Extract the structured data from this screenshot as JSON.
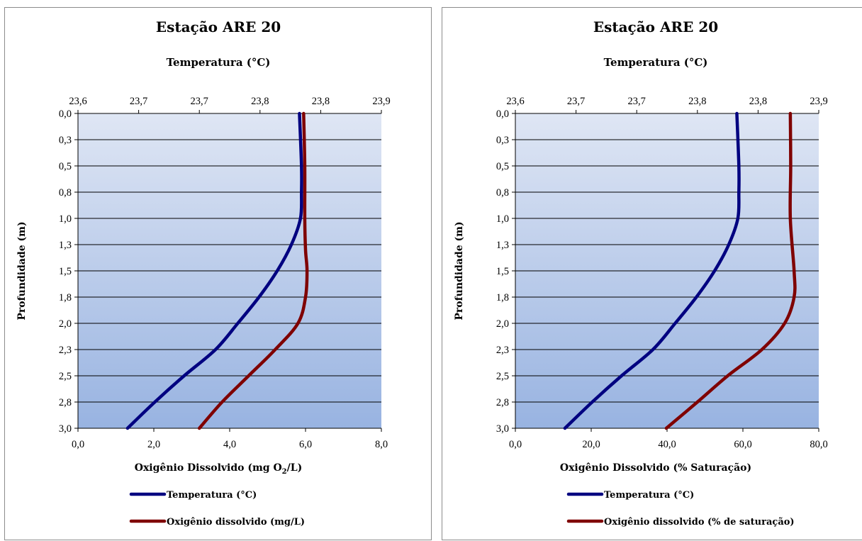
{
  "chart_data": [
    {
      "type": "line",
      "title": "Estação ARE 20",
      "x2label": "Temperatura  (°C)",
      "x2ticks": [
        "23,6",
        "23,7",
        "23,7",
        "23,8",
        "23,8",
        "23,9"
      ],
      "x2lim": [
        23.6,
        23.9
      ],
      "xlabel": "Oxigênio  Dissolvido  (mg  O",
      "xlabel_sub": "2",
      "xlabel_tail": "/L)",
      "xticks": [
        "0,0",
        "2,0",
        "4,0",
        "6,0",
        "8,0"
      ],
      "xlim": [
        0,
        8
      ],
      "ylabel": "Profundidade  (m)",
      "yticks": [
        "0,0",
        "0,3",
        "0,5",
        "0,8",
        "1,0",
        "1,3",
        "1,5",
        "1,8",
        "2,0",
        "2,3",
        "2,5",
        "2,8",
        "3,0"
      ],
      "ylim": [
        0,
        3
      ],
      "y_inverted": true,
      "grid": "horizontal",
      "legend_position": "bottom",
      "series": [
        {
          "name": "Temperatura (°C)",
          "axis": "top",
          "color": "#000080",
          "depth": [
            0,
            0.5,
            0.75,
            1.0,
            1.25,
            1.5,
            1.75,
            2.0,
            2.25,
            2.5,
            2.75,
            3.0
          ],
          "values": [
            23.819,
            23.821,
            23.821,
            23.82,
            23.811,
            23.797,
            23.779,
            23.758,
            23.736,
            23.705,
            23.676,
            23.649
          ]
        },
        {
          "name": "Oxigênio dissolvido (mg/L)",
          "axis": "bottom",
          "color": "#7f0000",
          "depth": [
            0,
            0.5,
            1.0,
            1.3,
            1.5,
            1.75,
            2.0,
            2.25,
            2.5,
            2.75,
            3.0
          ],
          "values": [
            5.95,
            5.98,
            5.98,
            6.0,
            6.04,
            6.0,
            5.8,
            5.2,
            4.5,
            3.8,
            3.2
          ]
        }
      ]
    },
    {
      "type": "line",
      "title": "Estação ARE 20",
      "x2label": "Temperatura  (°C)",
      "x2ticks": [
        "23,6",
        "23,7",
        "23,7",
        "23,8",
        "23,8",
        "23,9"
      ],
      "x2lim": [
        23.6,
        23.9
      ],
      "xlabel": "Oxigênio  Dissolvido  (%  Saturação)",
      "xlabel_sub": "",
      "xlabel_tail": "",
      "xticks": [
        "0,0",
        "20,0",
        "40,0",
        "60,0",
        "80,0"
      ],
      "xlim": [
        0,
        80
      ],
      "ylabel": "Profundidade  (m)",
      "yticks": [
        "0,0",
        "0,3",
        "0,5",
        "0,8",
        "1,0",
        "1,3",
        "1,5",
        "1,8",
        "2,0",
        "2,3",
        "2,5",
        "2,8",
        "3,0"
      ],
      "ylim": [
        0,
        3
      ],
      "y_inverted": true,
      "grid": "horizontal",
      "legend_position": "bottom",
      "series": [
        {
          "name": "Temperatura (°C)",
          "axis": "top",
          "color": "#000080",
          "depth": [
            0,
            0.5,
            0.75,
            1.0,
            1.25,
            1.5,
            1.75,
            2.0,
            2.25,
            2.5,
            2.75,
            3.0
          ],
          "values": [
            23.819,
            23.821,
            23.821,
            23.82,
            23.811,
            23.797,
            23.779,
            23.758,
            23.736,
            23.705,
            23.676,
            23.649
          ]
        },
        {
          "name": "Oxigênio dissolvido (% de saturação)",
          "axis": "bottom",
          "color": "#7f0000",
          "depth": [
            0,
            0.5,
            1.0,
            1.5,
            1.75,
            2.0,
            2.25,
            2.5,
            2.75,
            3.0
          ],
          "values": [
            72.5,
            72.6,
            72.5,
            73.5,
            73.5,
            71.0,
            65.0,
            56.0,
            48.0,
            39.8
          ]
        }
      ]
    }
  ]
}
